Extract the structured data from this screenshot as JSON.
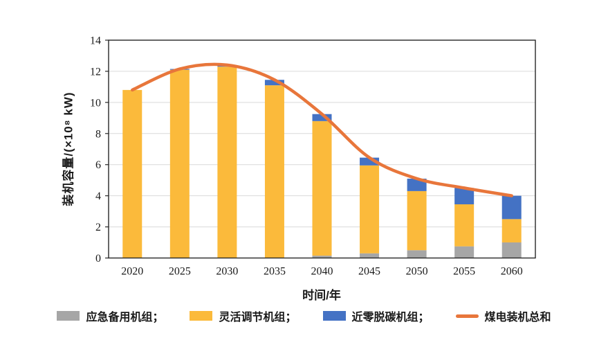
{
  "chart_data": {
    "type": "bar",
    "subtype": "stacked-bars-with-total-line",
    "categories": [
      "2020",
      "2025",
      "2030",
      "2035",
      "2040",
      "2045",
      "2050",
      "2055",
      "2060"
    ],
    "series": [
      {
        "name": "应急备用机组",
        "type": "bar",
        "color": "#A6A6A6",
        "values": [
          0,
          0,
          0,
          0,
          0.15,
          0.3,
          0.5,
          0.75,
          1.0
        ]
      },
      {
        "name": "灵活调节机组",
        "type": "bar",
        "color": "#FBBA3B",
        "values": [
          10.8,
          12.1,
          12.3,
          11.1,
          8.65,
          5.65,
          3.8,
          2.7,
          1.5
        ]
      },
      {
        "name": "近零脱碳机组",
        "type": "bar",
        "color": "#4472C4",
        "values": [
          0,
          0.05,
          0.1,
          0.35,
          0.45,
          0.5,
          0.8,
          1.05,
          1.5
        ]
      },
      {
        "name": "煤电装机总和",
        "type": "line",
        "color": "#E8763B",
        "values": [
          10.8,
          12.15,
          12.4,
          11.45,
          9.25,
          6.45,
          5.1,
          4.5,
          4.0
        ]
      }
    ],
    "title": "",
    "xlabel": "时间/年",
    "ylabel": "装机容量/(×10⁸ kW)",
    "ylim": [
      0,
      14
    ],
    "ytick_step": 2,
    "yticks": [
      "0",
      "2",
      "4",
      "6",
      "8",
      "10",
      "12",
      "14"
    ],
    "grid": "horizontal",
    "gridline_color": "#D9D9D9",
    "axis_border_color": "#262626",
    "legend_position": "bottom"
  },
  "legend": {
    "items": [
      {
        "label": "应急备用机组；",
        "color": "#A6A6A6",
        "shape": "bar"
      },
      {
        "label": "灵活调节机组；",
        "color": "#FBBA3B",
        "shape": "bar"
      },
      {
        "label": "近零脱碳机组；",
        "color": "#4472C4",
        "shape": "bar"
      },
      {
        "label": "煤电装机总和",
        "color": "#E8763B",
        "shape": "line"
      }
    ]
  }
}
